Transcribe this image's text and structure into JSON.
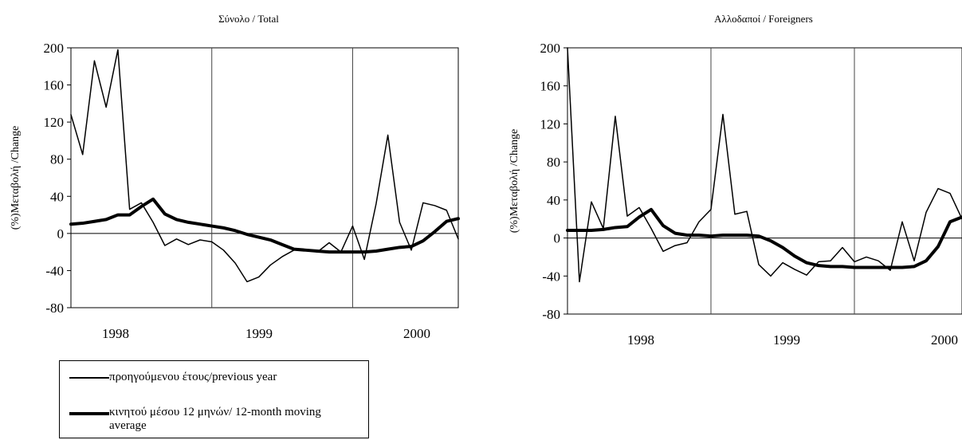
{
  "chart_data": [
    {
      "type": "line",
      "title": "Σύνολο / Total",
      "ylabel": "(%)Μεταβολή /Change",
      "xlabel": "",
      "ylim": [
        -80,
        200
      ],
      "yticks": [
        -80,
        -40,
        0,
        40,
        80,
        120,
        160,
        200
      ],
      "x_tick_labels": [
        "1998",
        "1999",
        "2000"
      ],
      "x_periods": 44,
      "year_separators_after_period": [
        16,
        32
      ],
      "grid": false,
      "series": [
        {
          "name": "προηγούμενου έτους/previous year",
          "values": [
            128,
            85,
            186,
            136,
            198,
            26,
            33,
            12,
            -13,
            -6,
            -12,
            -7,
            -9,
            -18,
            -32,
            -52,
            -47,
            -34,
            -25,
            -18,
            -18,
            -20,
            -10,
            -20,
            8,
            -28,
            32,
            106,
            12,
            -18,
            33,
            30,
            25,
            -6
          ]
        },
        {
          "name": "κινητού μέσου 12 μηνών/ 12-month moving average",
          "values": [
            10,
            11,
            13,
            15,
            20,
            20,
            29,
            37,
            21,
            15,
            12,
            10,
            8,
            6,
            3,
            -1,
            -4,
            -7,
            -12,
            -17,
            -18,
            -19,
            -20,
            -20,
            -20,
            -20,
            -19,
            -17,
            -15,
            -14,
            -8,
            2,
            13,
            16
          ]
        }
      ]
    },
    {
      "type": "line",
      "title": "Αλλοδαποί  / Foreigners",
      "ylabel": "(%)Μεταβολή /Change",
      "xlabel": "",
      "ylim": [
        -80,
        200
      ],
      "yticks": [
        -80,
        -40,
        0,
        40,
        80,
        120,
        160,
        200
      ],
      "x_tick_labels": [
        "1998",
        "1999",
        "2000"
      ],
      "x_periods": 44,
      "year_separators_after_period": [
        16,
        32
      ],
      "grid": false,
      "series": [
        {
          "name": "προηγούμενου έτους/previous year",
          "values": [
            200,
            -46,
            38,
            10,
            128,
            23,
            32,
            10,
            -14,
            -8,
            -5,
            17,
            30,
            130,
            25,
            28,
            -28,
            -40,
            -26,
            -33,
            -39,
            -25,
            -24,
            -10,
            -25,
            -20,
            -24,
            -34,
            17,
            -24,
            27,
            52,
            47,
            20
          ]
        },
        {
          "name": "κινητού μέσου 12 μηνών/ 12-month moving average",
          "values": [
            8,
            8,
            8,
            9,
            11,
            12,
            22,
            30,
            13,
            5,
            3,
            3,
            2,
            3,
            3,
            3,
            2,
            -3,
            -10,
            -19,
            -26,
            -29,
            -30,
            -30,
            -31,
            -31,
            -31,
            -31,
            -31,
            -30,
            -24,
            -9,
            17,
            22
          ]
        }
      ]
    }
  ],
  "legend": {
    "items": [
      {
        "label": "προηγούμενου έτους/previous year"
      },
      {
        "label": "κινητού μέσου 12 μηνών/ 12-month moving average"
      }
    ]
  }
}
